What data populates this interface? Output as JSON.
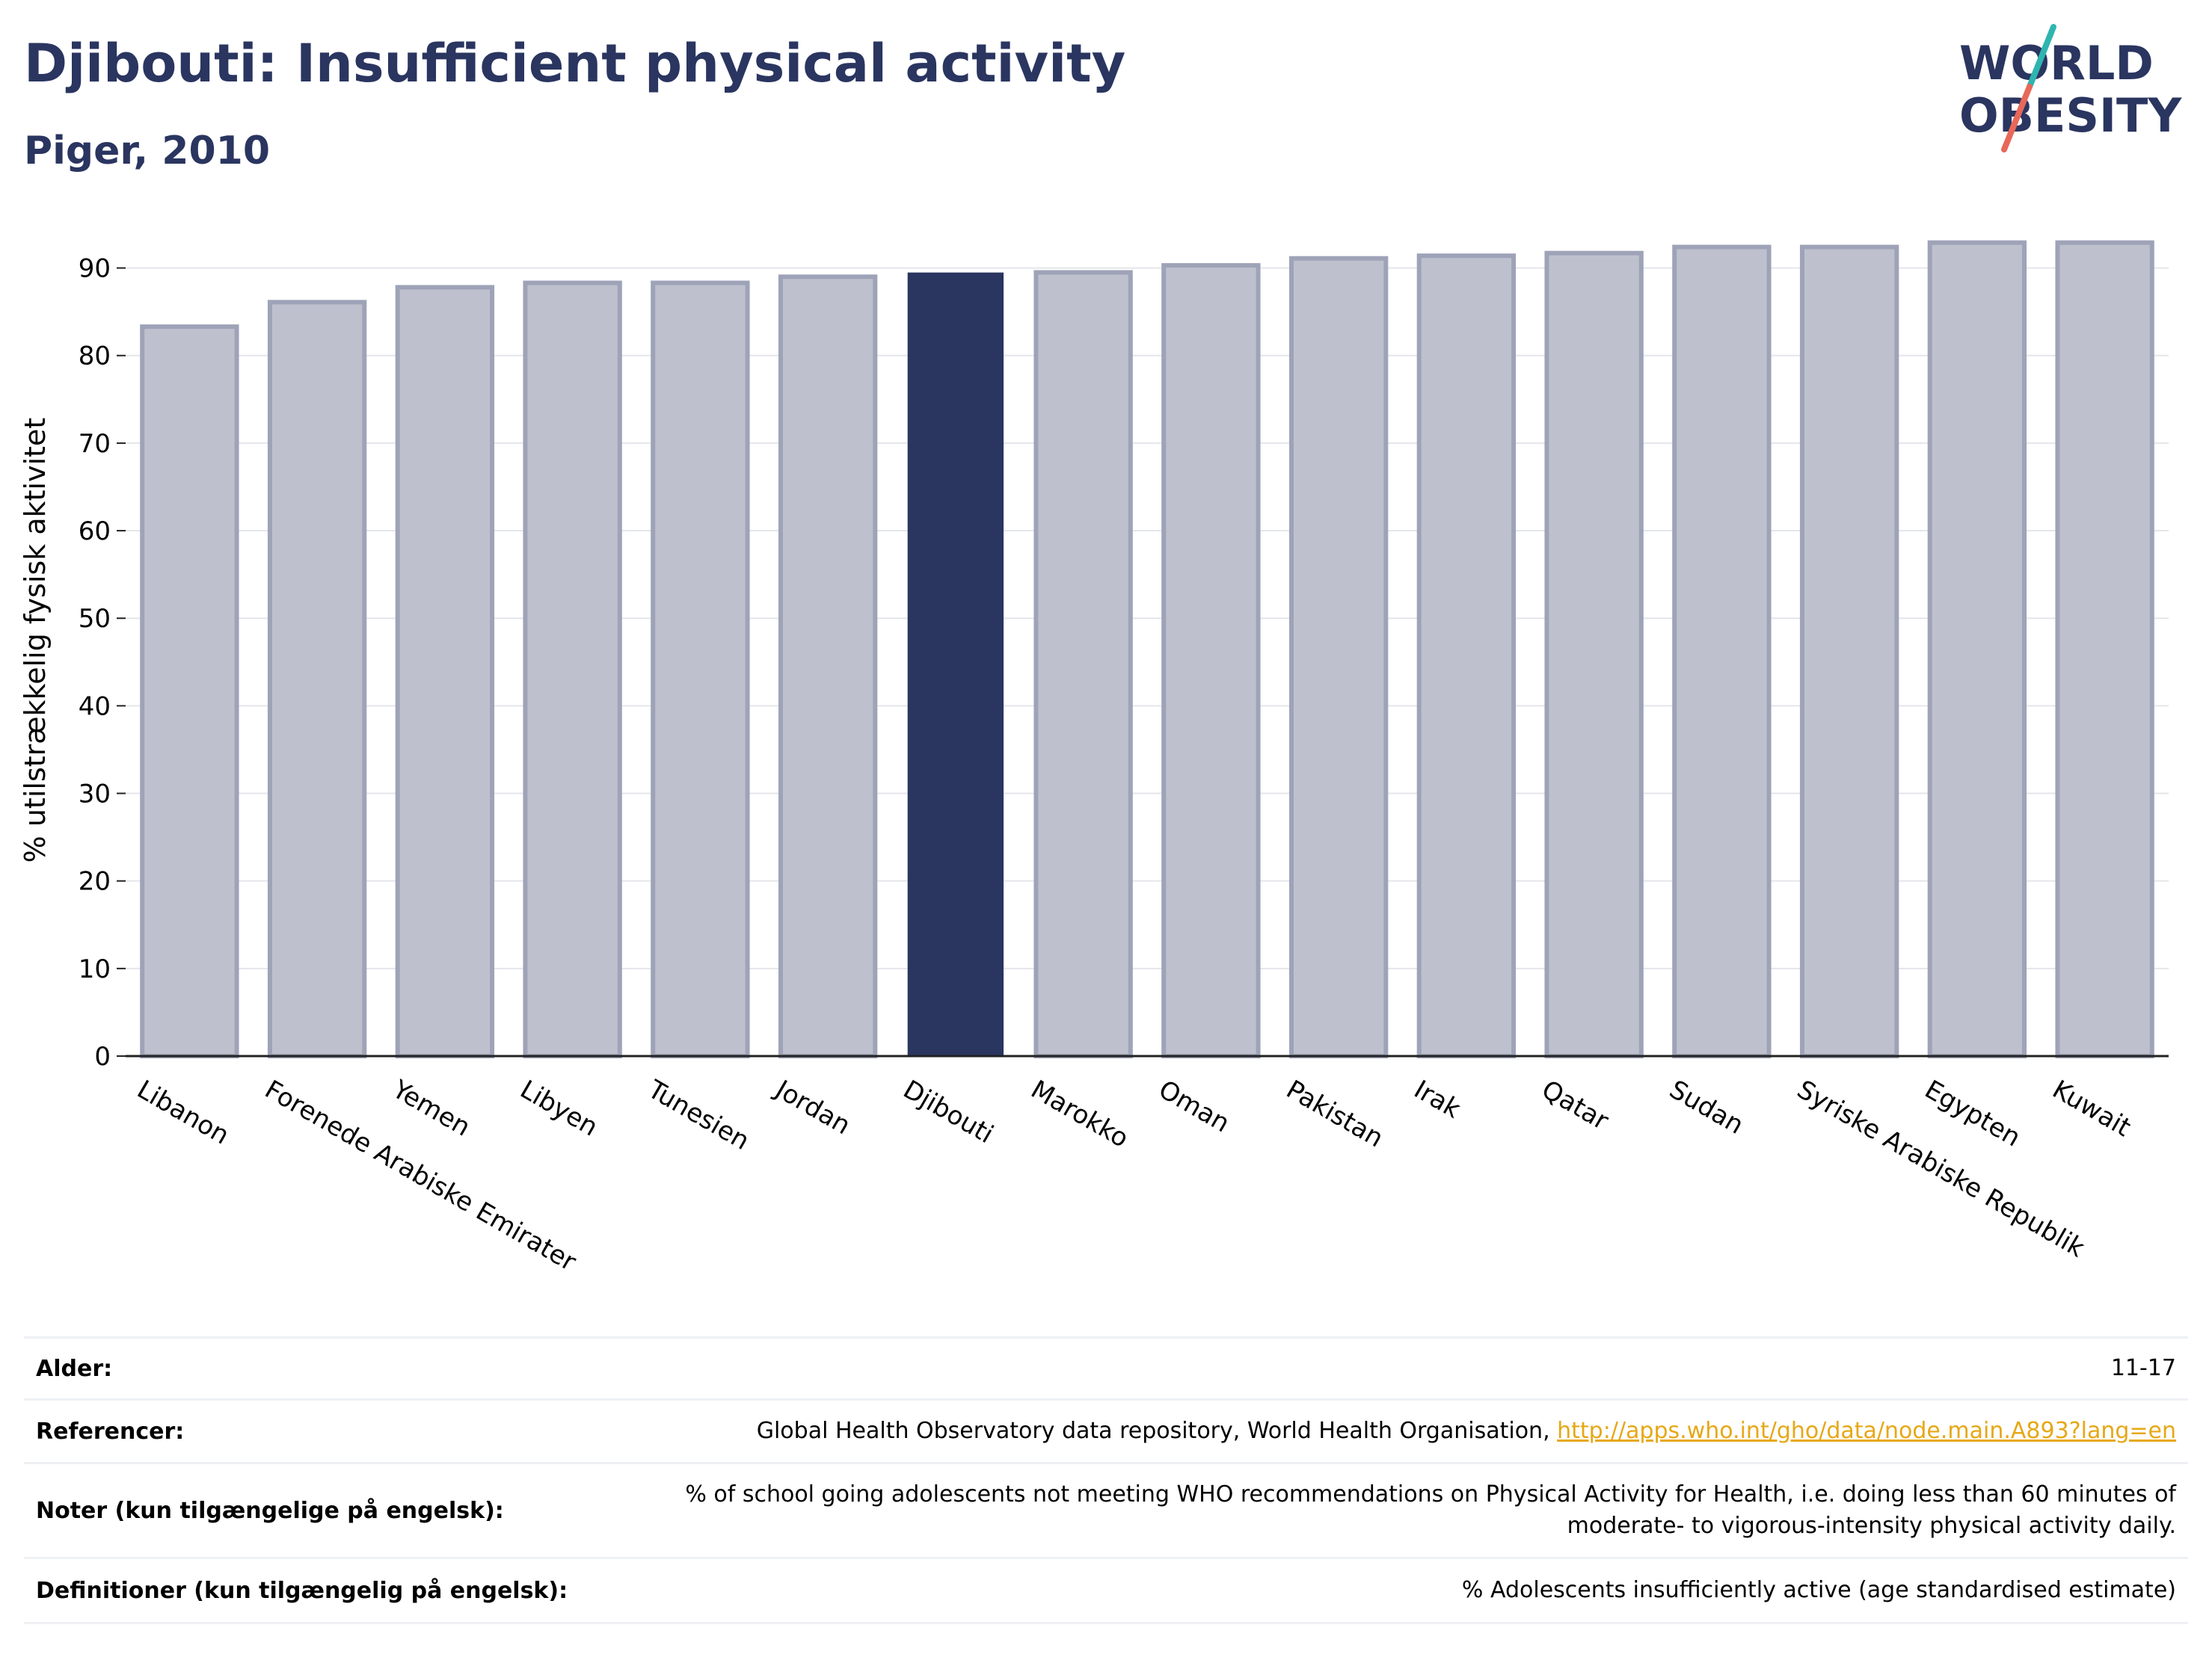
{
  "title": "Djibouti: Insufficient physical activity",
  "subtitle": "Piger, 2010",
  "logo": {
    "line1": "WORLD",
    "line2": "OBESITY"
  },
  "colors": {
    "highlight": "#2a3560",
    "bar_fill": "#bec1cd",
    "bar_stroke": "#9ea3b8",
    "title": "#2a3560",
    "link": "#e6a817"
  },
  "chart_data": {
    "type": "bar",
    "ylabel": "% utilstrækkelig fysisk aktivitet",
    "xlabel": "",
    "ylim": [
      0,
      95
    ],
    "yticks": [
      0,
      10,
      20,
      30,
      40,
      50,
      60,
      70,
      80,
      90
    ],
    "grid": true,
    "highlight": "Djibouti",
    "categories": [
      "Libanon",
      "Forenede Arabiske Emirater",
      "Yemen",
      "Libyen",
      "Tunesien",
      "Jordan",
      "Djibouti",
      "Marokko",
      "Oman",
      "Pakistan",
      "Irak",
      "Qatar",
      "Sudan",
      "Syriske Arabiske Republik",
      "Egypten",
      "Kuwait"
    ],
    "values": [
      83.3,
      86.1,
      87.8,
      88.3,
      88.3,
      89.0,
      89.4,
      89.5,
      90.3,
      91.1,
      91.4,
      91.7,
      92.4,
      92.4,
      92.9,
      92.9
    ]
  },
  "meta": {
    "age_label": "Alder:",
    "age_value": "11-17",
    "refs_label": "Referencer:",
    "refs_text": "Global Health Observatory data repository, World Health Organisation, ",
    "refs_link": "http://apps.who.int/gho/data/node.main.A893?lang=en",
    "notes_label": "Noter (kun tilgængelige på engelsk):",
    "notes_line1": "% of school going adolescents not meeting WHO recommendations on Physical Activity for Health, i.e. doing less than 60 minutes of",
    "notes_line2": "moderate- to vigorous-intensity physical activity daily.",
    "defs_label": "Definitioner (kun tilgængelig på engelsk):",
    "defs_value": "% Adolescents insufficiently active (age standardised estimate)"
  }
}
